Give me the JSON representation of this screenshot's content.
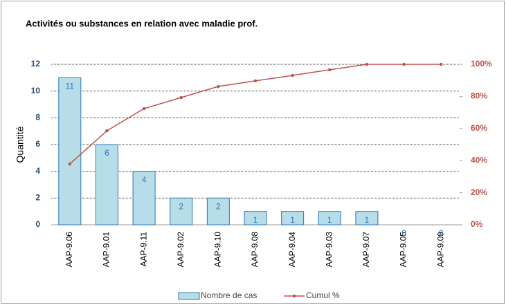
{
  "chart_data": {
    "type": "bar",
    "title": "Activités ou substances en relation avec maladie prof.",
    "y_label": "Quantité",
    "categories": [
      "AAP-9.06",
      "AAP-9.01",
      "AAP-9.11",
      "AAP-9.02",
      "AAP-9.10",
      "AAP-9.08",
      "AAP-9.04",
      "AAP-9.03",
      "AAP-9.07",
      "AAP-9.05",
      "AAP-9.09"
    ],
    "series": [
      {
        "name": "Nombre de cas",
        "color": "#b7dde8",
        "values": [
          11,
          6,
          4,
          2,
          2,
          1,
          1,
          1,
          1,
          0,
          0
        ]
      },
      {
        "name": "Cumul %",
        "color": "#c0504d",
        "axis": "y2",
        "values": [
          37.9,
          58.6,
          72.4,
          79.3,
          86.2,
          89.7,
          93.1,
          96.6,
          100,
          100,
          100
        ]
      }
    ],
    "ylim": [
      0,
      12
    ],
    "yticks": [
      0,
      2,
      4,
      6,
      8,
      10,
      12
    ],
    "y2lim": [
      0,
      100
    ],
    "y2ticks": [
      {
        "value": 0,
        "label": "0%"
      },
      {
        "value": 20,
        "label": "20%"
      },
      {
        "value": 40,
        "label": "40%"
      },
      {
        "value": 60,
        "label": "60%"
      },
      {
        "value": 80,
        "label": "80%"
      },
      {
        "value": 100,
        "label": "100%"
      }
    ],
    "grid": true,
    "legend": "bottom"
  }
}
